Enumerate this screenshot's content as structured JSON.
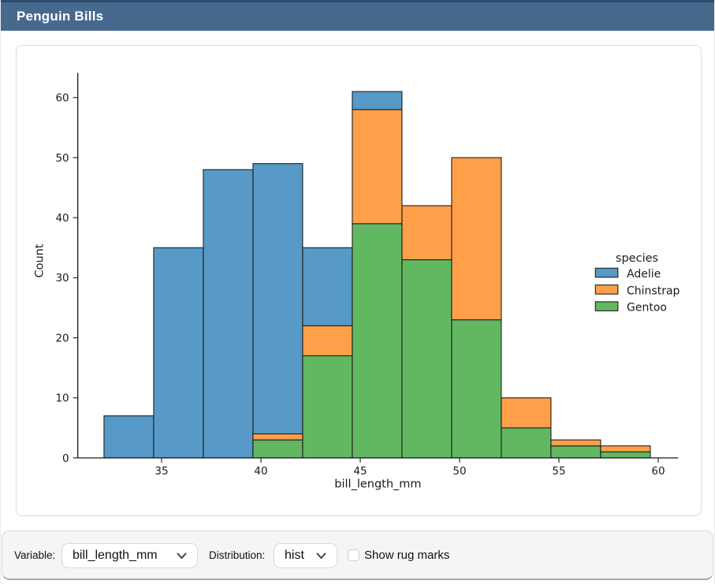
{
  "header": {
    "title": "Penguin Bills"
  },
  "colors": {
    "header_bg": "#47698e",
    "header_strip": "#2d4d6e",
    "adelie": "#5799c7",
    "chinstrap": "#ff9f4a",
    "gentoo": "#61b861",
    "bar_edge": "#1f1f1f",
    "axis": "#1a1a1a"
  },
  "chart_data": {
    "type": "bar",
    "subtype": "stacked-histogram",
    "title": "",
    "xlabel": "bill_length_mm",
    "ylabel": "Count",
    "bin_edges": [
      32.1,
      34.6,
      37.1,
      39.6,
      42.1,
      44.6,
      47.1,
      49.6,
      52.1,
      54.6,
      57.1,
      59.6
    ],
    "series": [
      {
        "name": "Adelie",
        "color": "#5799c7",
        "values": [
          7,
          35,
          48,
          45,
          13,
          3,
          0,
          0,
          0,
          0,
          0
        ]
      },
      {
        "name": "Chinstrap",
        "color": "#ff9f4a",
        "values": [
          0,
          0,
          0,
          1,
          5,
          19,
          9,
          27,
          5,
          1,
          1
        ]
      },
      {
        "name": "Gentoo",
        "color": "#61b861",
        "values": [
          0,
          0,
          0,
          3,
          17,
          39,
          33,
          23,
          5,
          2,
          1
        ]
      }
    ],
    "stack_order_bottom_to_top": [
      "Gentoo",
      "Chinstrap",
      "Adelie"
    ],
    "stack_totals": [
      7,
      35,
      48,
      49,
      35,
      61,
      42,
      50,
      10,
      3,
      2
    ],
    "x_ticks": [
      35,
      40,
      45,
      50,
      55,
      60
    ],
    "y_ticks": [
      0,
      10,
      20,
      30,
      40,
      50,
      60
    ],
    "xlim": [
      30.78,
      61.0
    ],
    "ylim": [
      0,
      64.1
    ],
    "grid": false,
    "legend_title": "species",
    "legend_position": "center-right",
    "legend_entries": [
      "Adelie",
      "Chinstrap",
      "Gentoo"
    ]
  },
  "controls": {
    "variable_label": "Variable:",
    "variable_value": "bill_length_mm",
    "distribution_label": "Distribution:",
    "distribution_value": "hist",
    "rug_label": "Show rug marks",
    "rug_checked": false
  }
}
